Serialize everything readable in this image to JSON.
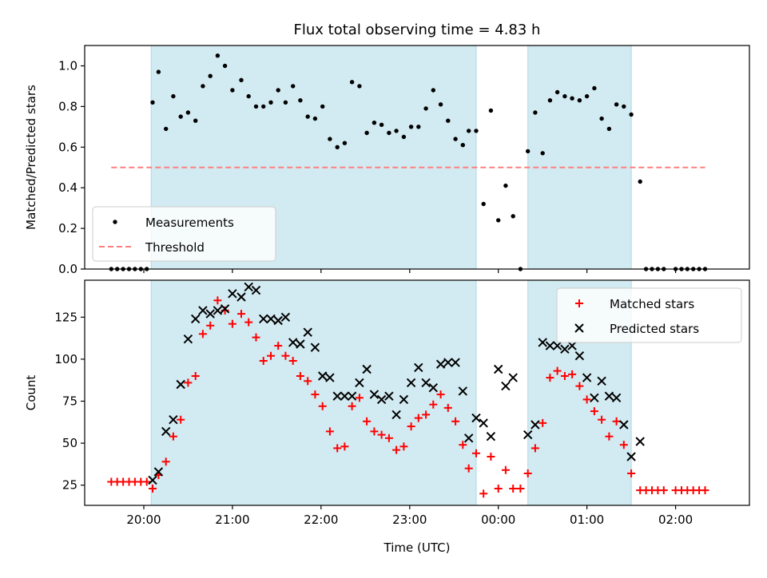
{
  "chart_data": [
    {
      "type": "scatter",
      "title": "Flux total observing time = 4.83 h",
      "ylabel": "Matched/Predicted stars",
      "xlabel": "",
      "ylim": [
        0,
        1.1
      ],
      "xlim": [
        "19:20",
        "02:50"
      ],
      "x_ticks": [
        "20:00",
        "21:00",
        "22:00",
        "23:00",
        "00:00",
        "01:00",
        "02:00"
      ],
      "y_ticks": [
        "0.0",
        "0.2",
        "0.4",
        "0.6",
        "0.8",
        "1.0"
      ],
      "shaded_spans": [
        [
          "20:05",
          "23:45"
        ],
        [
          "00:20",
          "01:30"
        ]
      ],
      "shade_color": "#add8e6",
      "legend": {
        "placement": "lower-left",
        "entries": [
          "Measurements",
          "Threshold"
        ]
      },
      "series": [
        {
          "name": "Measurements",
          "marker": "dot",
          "color": "#000000",
          "points": [
            [
              "19:38",
              0.0
            ],
            [
              "19:42",
              0.0
            ],
            [
              "19:46",
              0.0
            ],
            [
              "19:50",
              0.0
            ],
            [
              "19:54",
              0.0
            ],
            [
              "19:58",
              0.0
            ],
            [
              "20:02",
              0.0
            ],
            [
              "20:06",
              0.82
            ],
            [
              "20:10",
              0.97
            ],
            [
              "20:15",
              0.69
            ],
            [
              "20:20",
              0.85
            ],
            [
              "20:25",
              0.75
            ],
            [
              "20:30",
              0.77
            ],
            [
              "20:35",
              0.73
            ],
            [
              "20:40",
              0.9
            ],
            [
              "20:45",
              0.95
            ],
            [
              "20:50",
              1.05
            ],
            [
              "20:55",
              1.0
            ],
            [
              "21:00",
              0.88
            ],
            [
              "21:06",
              0.93
            ],
            [
              "21:11",
              0.85
            ],
            [
              "21:16",
              0.8
            ],
            [
              "21:21",
              0.8
            ],
            [
              "21:26",
              0.82
            ],
            [
              "21:31",
              0.88
            ],
            [
              "21:36",
              0.82
            ],
            [
              "21:41",
              0.9
            ],
            [
              "21:46",
              0.83
            ],
            [
              "21:51",
              0.75
            ],
            [
              "21:56",
              0.74
            ],
            [
              "22:01",
              0.8
            ],
            [
              "22:06",
              0.64
            ],
            [
              "22:11",
              0.6
            ],
            [
              "22:16",
              0.62
            ],
            [
              "22:21",
              0.92
            ],
            [
              "22:26",
              0.9
            ],
            [
              "22:31",
              0.67
            ],
            [
              "22:36",
              0.72
            ],
            [
              "22:41",
              0.71
            ],
            [
              "22:46",
              0.67
            ],
            [
              "22:51",
              0.68
            ],
            [
              "22:56",
              0.65
            ],
            [
              "23:01",
              0.7
            ],
            [
              "23:06",
              0.7
            ],
            [
              "23:11",
              0.79
            ],
            [
              "23:16",
              0.88
            ],
            [
              "23:21",
              0.81
            ],
            [
              "23:26",
              0.73
            ],
            [
              "23:31",
              0.64
            ],
            [
              "23:36",
              0.61
            ],
            [
              "23:40",
              0.68
            ],
            [
              "23:45",
              0.68
            ],
            [
              "23:50",
              0.32
            ],
            [
              "23:55",
              0.78
            ],
            [
              "00:00",
              0.24
            ],
            [
              "00:05",
              0.41
            ],
            [
              "00:10",
              0.26
            ],
            [
              "00:15",
              0.0
            ],
            [
              "00:20",
              0.58
            ],
            [
              "00:25",
              0.77
            ],
            [
              "00:30",
              0.57
            ],
            [
              "00:35",
              0.83
            ],
            [
              "00:40",
              0.87
            ],
            [
              "00:45",
              0.85
            ],
            [
              "00:50",
              0.84
            ],
            [
              "00:55",
              0.83
            ],
            [
              "01:00",
              0.85
            ],
            [
              "01:05",
              0.89
            ],
            [
              "01:10",
              0.74
            ],
            [
              "01:15",
              0.69
            ],
            [
              "01:20",
              0.81
            ],
            [
              "01:25",
              0.8
            ],
            [
              "01:30",
              0.76
            ],
            [
              "01:36",
              0.43
            ],
            [
              "01:40",
              0.0
            ],
            [
              "01:44",
              0.0
            ],
            [
              "01:48",
              0.0
            ],
            [
              "01:52",
              0.0
            ],
            [
              "02:00",
              0.0
            ],
            [
              "02:04",
              0.0
            ],
            [
              "02:08",
              0.0
            ],
            [
              "02:12",
              0.0
            ],
            [
              "02:16",
              0.0
            ],
            [
              "02:20",
              0.0
            ]
          ]
        },
        {
          "name": "Threshold",
          "marker": "dashed-line",
          "color": "#ff7f7f",
          "points": [
            [
              "19:38",
              0.5
            ],
            [
              "02:20",
              0.5
            ]
          ]
        }
      ]
    },
    {
      "type": "scatter",
      "title": "",
      "ylabel": "Count",
      "xlabel": "Time (UTC)",
      "ylim": [
        13,
        147
      ],
      "xlim": [
        "19:20",
        "02:50"
      ],
      "x_ticks": [
        "20:00",
        "21:00",
        "22:00",
        "23:00",
        "00:00",
        "01:00",
        "02:00"
      ],
      "y_ticks": [
        "25",
        "50",
        "75",
        "100",
        "125"
      ],
      "shaded_spans": [
        [
          "20:05",
          "23:45"
        ],
        [
          "00:20",
          "01:30"
        ]
      ],
      "shade_color": "#add8e6",
      "legend": {
        "placement": "upper-right",
        "entries": [
          "Matched stars",
          "Predicted stars"
        ]
      },
      "series": [
        {
          "name": "Matched stars",
          "marker": "plus",
          "color": "#ff0000",
          "points": [
            [
              "19:38",
              27
            ],
            [
              "19:42",
              27
            ],
            [
              "19:46",
              27
            ],
            [
              "19:50",
              27
            ],
            [
              "19:54",
              27
            ],
            [
              "19:58",
              27
            ],
            [
              "20:02",
              27
            ],
            [
              "20:06",
              23
            ],
            [
              "20:10",
              31
            ],
            [
              "20:15",
              39
            ],
            [
              "20:20",
              54
            ],
            [
              "20:25",
              64
            ],
            [
              "20:30",
              86
            ],
            [
              "20:35",
              90
            ],
            [
              "20:40",
              115
            ],
            [
              "20:45",
              120
            ],
            [
              "20:50",
              135
            ],
            [
              "20:55",
              129
            ],
            [
              "21:00",
              121
            ],
            [
              "21:06",
              127
            ],
            [
              "21:11",
              122
            ],
            [
              "21:16",
              113
            ],
            [
              "21:21",
              99
            ],
            [
              "21:26",
              102
            ],
            [
              "21:31",
              108
            ],
            [
              "21:36",
              102
            ],
            [
              "21:41",
              99
            ],
            [
              "21:46",
              90
            ],
            [
              "21:51",
              87
            ],
            [
              "21:56",
              79
            ],
            [
              "22:01",
              72
            ],
            [
              "22:06",
              57
            ],
            [
              "22:11",
              47
            ],
            [
              "22:16",
              48
            ],
            [
              "22:21",
              72
            ],
            [
              "22:26",
              77
            ],
            [
              "22:31",
              63
            ],
            [
              "22:36",
              57
            ],
            [
              "22:41",
              55
            ],
            [
              "22:46",
              53
            ],
            [
              "22:51",
              46
            ],
            [
              "22:56",
              48
            ],
            [
              "23:01",
              60
            ],
            [
              "23:06",
              65
            ],
            [
              "23:11",
              67
            ],
            [
              "23:16",
              73
            ],
            [
              "23:21",
              79
            ],
            [
              "23:26",
              71
            ],
            [
              "23:31",
              63
            ],
            [
              "23:36",
              49
            ],
            [
              "23:40",
              35
            ],
            [
              "23:45",
              44
            ],
            [
              "23:50",
              20
            ],
            [
              "23:55",
              42
            ],
            [
              "00:00",
              23
            ],
            [
              "00:05",
              34
            ],
            [
              "00:10",
              23
            ],
            [
              "00:15",
              23
            ],
            [
              "00:20",
              32
            ],
            [
              "00:25",
              47
            ],
            [
              "00:30",
              62
            ],
            [
              "00:35",
              89
            ],
            [
              "00:40",
              93
            ],
            [
              "00:45",
              90
            ],
            [
              "00:50",
              91
            ],
            [
              "00:55",
              84
            ],
            [
              "01:00",
              76
            ],
            [
              "01:05",
              69
            ],
            [
              "01:10",
              64
            ],
            [
              "01:15",
              54
            ],
            [
              "01:20",
              63
            ],
            [
              "01:25",
              49
            ],
            [
              "01:30",
              32
            ],
            [
              "01:36",
              22
            ],
            [
              "01:40",
              22
            ],
            [
              "01:44",
              22
            ],
            [
              "01:48",
              22
            ],
            [
              "01:52",
              22
            ],
            [
              "02:00",
              22
            ],
            [
              "02:04",
              22
            ],
            [
              "02:08",
              22
            ],
            [
              "02:12",
              22
            ],
            [
              "02:16",
              22
            ],
            [
              "02:20",
              22
            ]
          ]
        },
        {
          "name": "Predicted stars",
          "marker": "x",
          "color": "#000000",
          "points": [
            [
              "20:06",
              28
            ],
            [
              "20:10",
              33
            ],
            [
              "20:15",
              57
            ],
            [
              "20:20",
              64
            ],
            [
              "20:25",
              85
            ],
            [
              "20:30",
              112
            ],
            [
              "20:35",
              124
            ],
            [
              "20:40",
              129
            ],
            [
              "20:45",
              127
            ],
            [
              "20:50",
              129
            ],
            [
              "20:55",
              130
            ],
            [
              "21:00",
              139
            ],
            [
              "21:06",
              137
            ],
            [
              "21:11",
              143
            ],
            [
              "21:16",
              141
            ],
            [
              "21:21",
              124
            ],
            [
              "21:26",
              124
            ],
            [
              "21:31",
              123
            ],
            [
              "21:36",
              125
            ],
            [
              "21:41",
              110
            ],
            [
              "21:46",
              109
            ],
            [
              "21:51",
              116
            ],
            [
              "21:56",
              107
            ],
            [
              "22:01",
              90
            ],
            [
              "22:06",
              89
            ],
            [
              "22:11",
              78
            ],
            [
              "22:16",
              78
            ],
            [
              "22:21",
              78
            ],
            [
              "22:26",
              86
            ],
            [
              "22:31",
              94
            ],
            [
              "22:36",
              79
            ],
            [
              "22:41",
              76
            ],
            [
              "22:46",
              78
            ],
            [
              "22:51",
              67
            ],
            [
              "22:56",
              76
            ],
            [
              "23:01",
              86
            ],
            [
              "23:06",
              95
            ],
            [
              "23:11",
              86
            ],
            [
              "23:16",
              83
            ],
            [
              "23:21",
              97
            ],
            [
              "23:26",
              98
            ],
            [
              "23:31",
              98
            ],
            [
              "23:36",
              81
            ],
            [
              "23:40",
              53
            ],
            [
              "23:45",
              65
            ],
            [
              "23:50",
              62
            ],
            [
              "23:55",
              54
            ],
            [
              "00:00",
              94
            ],
            [
              "00:05",
              84
            ],
            [
              "00:10",
              89
            ],
            [
              "00:20",
              55
            ],
            [
              "00:25",
              61
            ],
            [
              "00:30",
              110
            ],
            [
              "00:35",
              108
            ],
            [
              "00:40",
              108
            ],
            [
              "00:45",
              106
            ],
            [
              "00:50",
              108
            ],
            [
              "00:55",
              102
            ],
            [
              "01:00",
              89
            ],
            [
              "01:05",
              77
            ],
            [
              "01:10",
              87
            ],
            [
              "01:15",
              78
            ],
            [
              "01:20",
              77
            ],
            [
              "01:25",
              61
            ],
            [
              "01:30",
              42
            ],
            [
              "01:36",
              51
            ]
          ]
        }
      ]
    }
  ]
}
